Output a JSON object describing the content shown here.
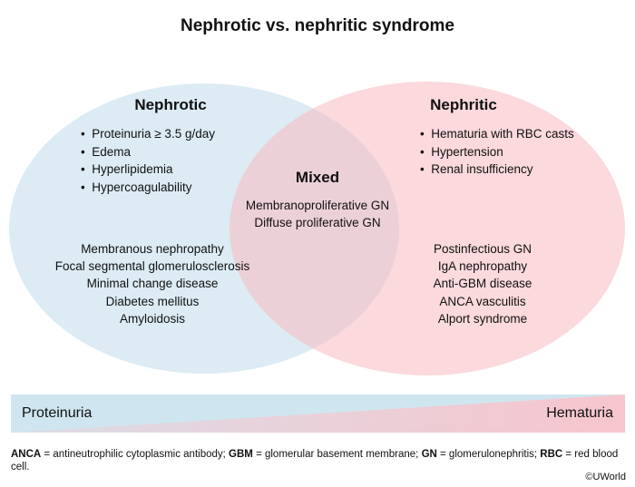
{
  "title": "Nephrotic vs. nephritic syndrome",
  "colors": {
    "nephrotic_fill": "#dcebf4",
    "nephritic_fill": "#fbd9dc",
    "overlap_fill": "#ecd0d8",
    "gradient_blue": "#cfe6f0",
    "gradient_pink": "#f7c5cd"
  },
  "nephrotic": {
    "heading": "Nephrotic",
    "features": [
      "Proteinuria ≥ 3.5 g/day",
      "Edema",
      "Hyperlipidemia",
      "Hypercoagulability"
    ],
    "diseases": [
      "Membranous nephropathy",
      "Focal segmental glomerulosclerosis",
      "Minimal change disease",
      "Diabetes mellitus",
      "Amyloidosis"
    ]
  },
  "mixed": {
    "heading": "Mixed",
    "diseases": [
      "Membranoproliferative GN",
      "Diffuse proliferative GN"
    ]
  },
  "nephritic": {
    "heading": "Nephritic",
    "features": [
      "Hematuria with RBC casts",
      "Hypertension",
      "Renal insufficiency"
    ],
    "diseases": [
      "Postinfectious GN",
      "IgA nephropathy",
      "Anti-GBM disease",
      "ANCA vasculitis",
      "Alport syndrome"
    ]
  },
  "gradient": {
    "left_label": "Proteinuria",
    "right_label": "Hematuria"
  },
  "footnote": [
    {
      "abbr": "ANCA",
      "text": " = antineutrophilic cytoplasmic antibody; "
    },
    {
      "abbr": "GBM",
      "text": " = glomerular basement membrane; "
    },
    {
      "abbr": "GN",
      "text": " = glomerulonephritis; "
    },
    {
      "abbr": "RBC",
      "text": " = red blood cell."
    }
  ],
  "copyright": "©UWorld"
}
